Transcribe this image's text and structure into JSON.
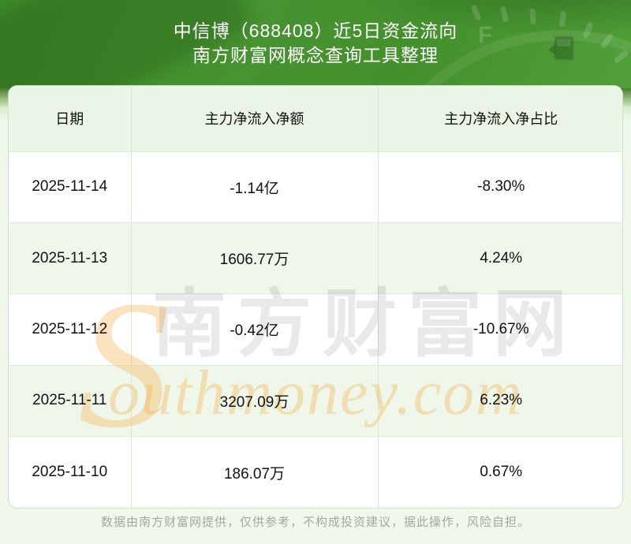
{
  "banner": {
    "title": "中信博（688408）近5日资金流向",
    "subtitle": "南方财富网概念查询工具整理"
  },
  "table": {
    "columns": [
      "日期",
      "主力净流入净额",
      "主力净流入净占比"
    ],
    "rows": [
      {
        "date": "2025-11-14",
        "amount": "-1.14亿",
        "ratio": "-8.30%"
      },
      {
        "date": "2025-11-13",
        "amount": "1606.77万",
        "ratio": "4.24%"
      },
      {
        "date": "2025-11-12",
        "amount": "-0.42亿",
        "ratio": "-10.67%"
      },
      {
        "date": "2025-11-11",
        "amount": "3207.09万",
        "ratio": "6.23%"
      },
      {
        "date": "2025-11-10",
        "amount": "186.07万",
        "ratio": "0.67%"
      }
    ]
  },
  "watermark": {
    "initial": "S",
    "cn": "南方财富网",
    "en": "outhmoney.com"
  },
  "footer": {
    "disclaimer": "数据由南方财富网提供，仅供参考，不构成投资建议，据此操作，风险自担。"
  },
  "icons": {
    "gauge_letter": "F",
    "gauge_pump": "fuel-pump-icon"
  },
  "colors": {
    "banner_green_dark": "#3e8928",
    "banner_green_light": "#52a03a",
    "page_bg": "#eff8ea",
    "header_row_bg": "#eaf5e6",
    "alt_row_bg": "#eef7ea",
    "divider": "#d5e8cd",
    "card_border": "#cfe2c6",
    "text": "#121212",
    "footer_text": "#a2a8a0",
    "watermark_orange": "rgba(244,186,96,0.42)",
    "watermark_gray": "rgba(40,40,40,0.10)"
  },
  "chart_data": {
    "type": "table",
    "title": "中信博（688408）近5日资金流向",
    "subtitle": "南方财富网概念查询工具整理",
    "columns": [
      "日期",
      "主力净流入净额",
      "主力净流入净占比"
    ],
    "rows": [
      [
        "2025-11-14",
        "-1.14亿",
        "-8.30%"
      ],
      [
        "2025-11-13",
        "1606.77万",
        "4.24%"
      ],
      [
        "2025-11-12",
        "-0.42亿",
        "-10.67%"
      ],
      [
        "2025-11-11",
        "3207.09万",
        "6.23%"
      ],
      [
        "2025-11-10",
        "186.07万",
        "0.67%"
      ]
    ],
    "numeric": {
      "dates": [
        "2025-11-14",
        "2025-11-13",
        "2025-11-12",
        "2025-11-11",
        "2025-11-10"
      ],
      "net_inflow_yuan": [
        -114000000,
        16067700,
        -42000000,
        32070900,
        1860700
      ],
      "net_inflow_pct": [
        -8.3,
        4.24,
        -10.67,
        6.23,
        0.67
      ]
    }
  }
}
